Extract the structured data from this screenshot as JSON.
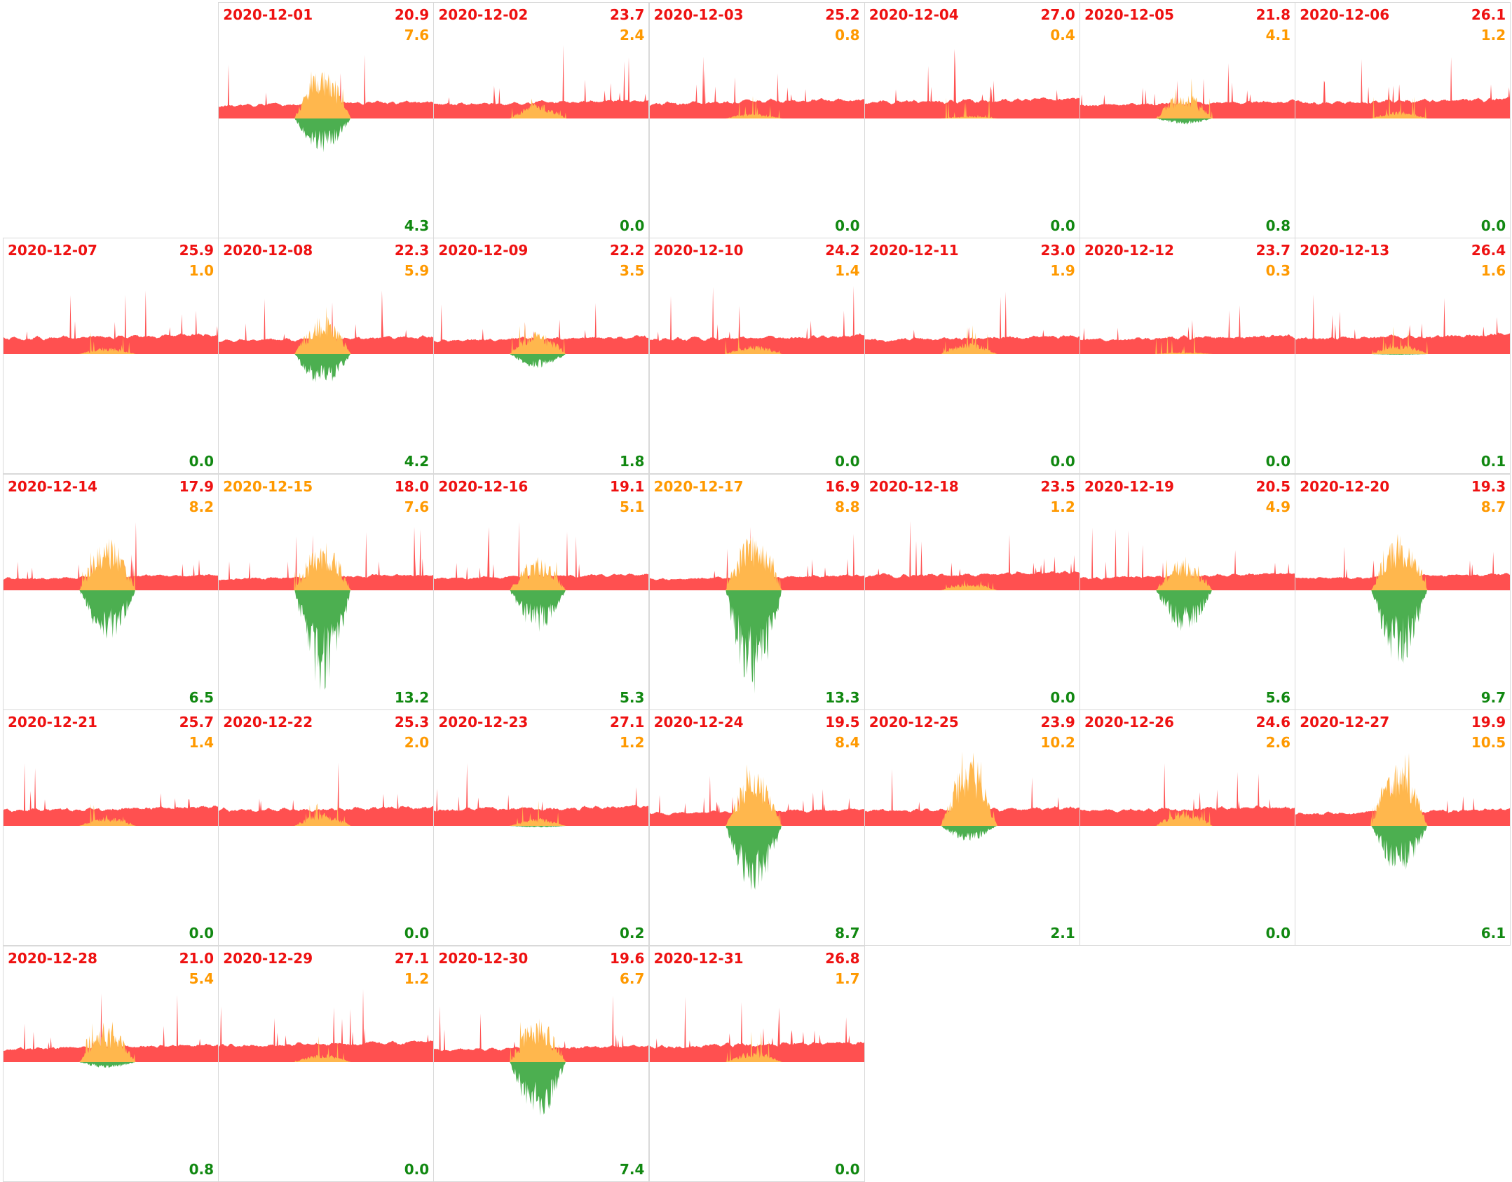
{
  "colors": {
    "consumption": "#ff5050",
    "self_consumption": "#ffb74d",
    "export": "#4caf50",
    "label_red": "#ee1111",
    "label_orange": "#ff9900",
    "label_green": "#118811"
  },
  "chart_data": {
    "type": "area",
    "calendar": {
      "columns": 7,
      "rows": 5,
      "first_day_column": 1
    },
    "legend": "none",
    "days": [
      {
        "date": "2020-12-01",
        "date_color": "red",
        "v1": "20.9",
        "v2": "7.6",
        "v3": "4.3"
      },
      {
        "date": "2020-12-02",
        "date_color": "red",
        "v1": "23.7",
        "v2": "2.4",
        "v3": "0.0"
      },
      {
        "date": "2020-12-03",
        "date_color": "red",
        "v1": "25.2",
        "v2": "0.8",
        "v3": "0.0"
      },
      {
        "date": "2020-12-04",
        "date_color": "red",
        "v1": "27.0",
        "v2": "0.4",
        "v3": "0.0"
      },
      {
        "date": "2020-12-05",
        "date_color": "red",
        "v1": "21.8",
        "v2": "4.1",
        "v3": "0.8"
      },
      {
        "date": "2020-12-06",
        "date_color": "red",
        "v1": "26.1",
        "v2": "1.2",
        "v3": "0.0"
      },
      {
        "date": "2020-12-07",
        "date_color": "red",
        "v1": "25.9",
        "v2": "1.0",
        "v3": "0.0"
      },
      {
        "date": "2020-12-08",
        "date_color": "red",
        "v1": "22.3",
        "v2": "5.9",
        "v3": "4.2"
      },
      {
        "date": "2020-12-09",
        "date_color": "red",
        "v1": "22.2",
        "v2": "3.5",
        "v3": "1.8"
      },
      {
        "date": "2020-12-10",
        "date_color": "red",
        "v1": "24.2",
        "v2": "1.4",
        "v3": "0.0"
      },
      {
        "date": "2020-12-11",
        "date_color": "red",
        "v1": "23.0",
        "v2": "1.9",
        "v3": "0.0"
      },
      {
        "date": "2020-12-12",
        "date_color": "red",
        "v1": "23.7",
        "v2": "0.3",
        "v3": "0.0"
      },
      {
        "date": "2020-12-13",
        "date_color": "red",
        "v1": "26.4",
        "v2": "1.6",
        "v3": "0.1"
      },
      {
        "date": "2020-12-14",
        "date_color": "red",
        "v1": "17.9",
        "v2": "8.2",
        "v3": "6.5"
      },
      {
        "date": "2020-12-15",
        "date_color": "orange",
        "v1": "18.0",
        "v2": "7.6",
        "v3": "13.2"
      },
      {
        "date": "2020-12-16",
        "date_color": "red",
        "v1": "19.1",
        "v2": "5.1",
        "v3": "5.3"
      },
      {
        "date": "2020-12-17",
        "date_color": "orange",
        "v1": "16.9",
        "v2": "8.8",
        "v3": "13.3"
      },
      {
        "date": "2020-12-18",
        "date_color": "red",
        "v1": "23.5",
        "v2": "1.2",
        "v3": "0.0"
      },
      {
        "date": "2020-12-19",
        "date_color": "red",
        "v1": "20.5",
        "v2": "4.9",
        "v3": "5.6"
      },
      {
        "date": "2020-12-20",
        "date_color": "red",
        "v1": "19.3",
        "v2": "8.7",
        "v3": "9.7"
      },
      {
        "date": "2020-12-21",
        "date_color": "red",
        "v1": "25.7",
        "v2": "1.4",
        "v3": "0.0"
      },
      {
        "date": "2020-12-22",
        "date_color": "red",
        "v1": "25.3",
        "v2": "2.0",
        "v3": "0.0"
      },
      {
        "date": "2020-12-23",
        "date_color": "red",
        "v1": "27.1",
        "v2": "1.2",
        "v3": "0.2"
      },
      {
        "date": "2020-12-24",
        "date_color": "red",
        "v1": "19.5",
        "v2": "8.4",
        "v3": "8.7"
      },
      {
        "date": "2020-12-25",
        "date_color": "red",
        "v1": "23.9",
        "v2": "10.2",
        "v3": "2.1"
      },
      {
        "date": "2020-12-26",
        "date_color": "red",
        "v1": "24.6",
        "v2": "2.6",
        "v3": "0.0"
      },
      {
        "date": "2020-12-27",
        "date_color": "red",
        "v1": "19.9",
        "v2": "10.5",
        "v3": "6.1"
      },
      {
        "date": "2020-12-28",
        "date_color": "red",
        "v1": "21.0",
        "v2": "5.4",
        "v3": "0.8"
      },
      {
        "date": "2020-12-29",
        "date_color": "red",
        "v1": "27.1",
        "v2": "1.2",
        "v3": "0.0"
      },
      {
        "date": "2020-12-30",
        "date_color": "red",
        "v1": "19.6",
        "v2": "6.7",
        "v3": "7.4"
      },
      {
        "date": "2020-12-31",
        "date_color": "red",
        "v1": "26.8",
        "v2": "1.7",
        "v3": "0.0"
      }
    ]
  }
}
